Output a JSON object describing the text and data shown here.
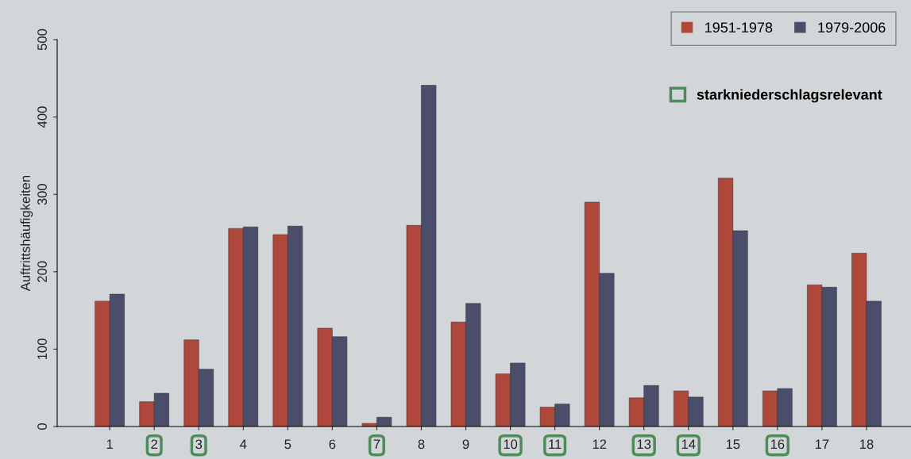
{
  "chart_data": {
    "type": "bar",
    "ylabel": "Auftrittshäufigkeiten",
    "categories": [
      "1",
      "2",
      "3",
      "4",
      "5",
      "6",
      "7",
      "8",
      "9",
      "10",
      "11",
      "12",
      "13",
      "14",
      "15",
      "16",
      "17",
      "18"
    ],
    "series": [
      {
        "name": "1951-1978",
        "color": "#b0473b",
        "values": [
          162,
          32,
          112,
          256,
          248,
          127,
          4,
          260,
          135,
          68,
          25,
          290,
          37,
          46,
          321,
          46,
          183,
          224
        ]
      },
      {
        "name": "1979-2006",
        "color": "#4a4e6b",
        "values": [
          171,
          43,
          74,
          258,
          259,
          116,
          12,
          441,
          159,
          82,
          29,
          198,
          53,
          38,
          253,
          49,
          180,
          162
        ]
      }
    ],
    "ylim": [
      0,
      500
    ],
    "yticks": [
      0,
      100,
      200,
      300,
      400,
      500
    ],
    "annotations": [
      "starkniederschlagsrelevant"
    ],
    "grid": false,
    "legend": "top right"
  }
}
